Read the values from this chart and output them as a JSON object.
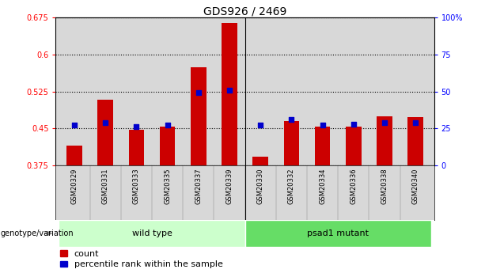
{
  "title": "GDS926 / 2469",
  "samples": [
    "GSM20329",
    "GSM20331",
    "GSM20333",
    "GSM20335",
    "GSM20337",
    "GSM20339",
    "GSM20330",
    "GSM20332",
    "GSM20334",
    "GSM20336",
    "GSM20338",
    "GSM20340"
  ],
  "counts": [
    0.415,
    0.508,
    0.447,
    0.453,
    0.575,
    0.665,
    0.392,
    0.465,
    0.453,
    0.453,
    0.475,
    0.472
  ],
  "percentile_pct": [
    27,
    29,
    26,
    27,
    49,
    51,
    27,
    31,
    27,
    27.5,
    29,
    29
  ],
  "ylim_left": [
    0.375,
    0.675
  ],
  "yticks_left": [
    0.375,
    0.45,
    0.525,
    0.6,
    0.675
  ],
  "ylim_right": [
    0,
    100
  ],
  "yticks_right": [
    0,
    25,
    50,
    75,
    100
  ],
  "ytick_labels_right": [
    "0",
    "25",
    "50",
    "75",
    "100%"
  ],
  "groups": [
    {
      "label": "wild type",
      "start": 0,
      "end": 6,
      "color": "#ccffcc"
    },
    {
      "label": "psad1 mutant",
      "start": 6,
      "end": 12,
      "color": "#66dd66"
    }
  ],
  "genotype_label": "genotype/variation",
  "bar_color": "#cc0000",
  "marker_color": "#0000cc",
  "bar_width": 0.5,
  "plot_bg_color": "#d8d8d8",
  "title_fontsize": 10,
  "tick_fontsize": 7,
  "label_fontsize": 7,
  "legend_fontsize": 8
}
